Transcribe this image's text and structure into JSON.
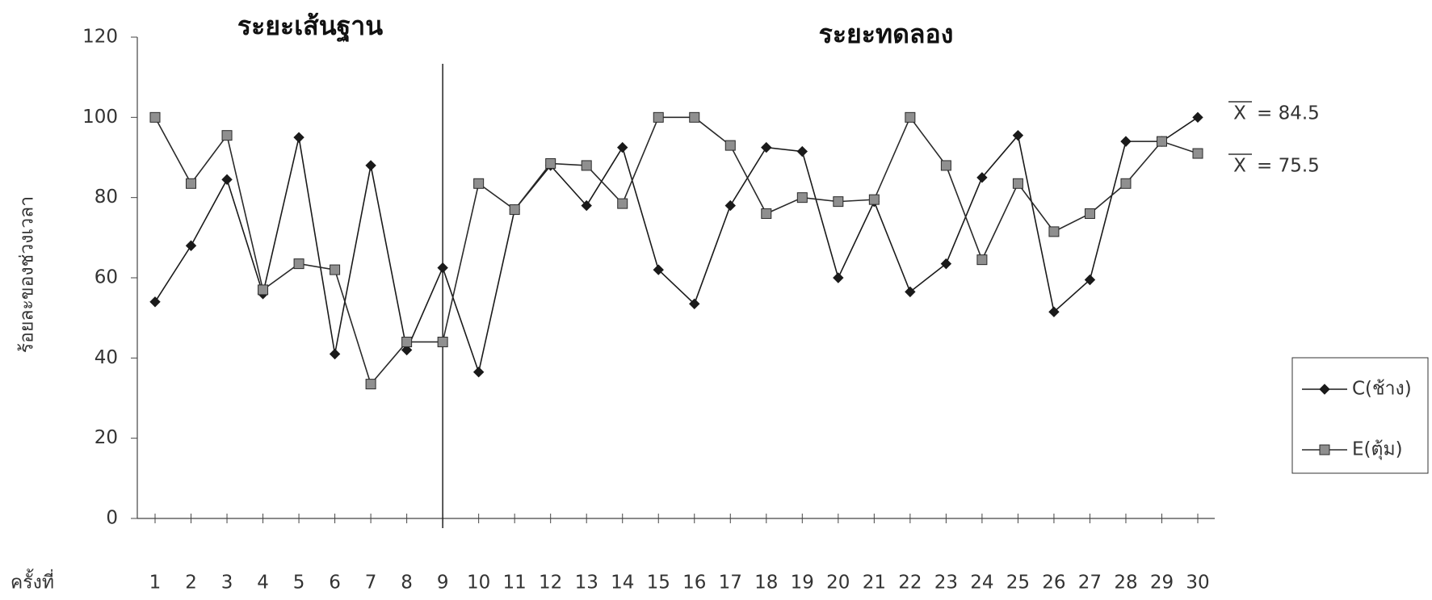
{
  "chart_data": {
    "type": "line",
    "phase_labels": [
      "ระยะเส้นฐาน",
      "ระยะทดลอง"
    ],
    "phase_change_x": 9,
    "y_label": "ร้อยละของช่วงเวลา",
    "x_label": "ครั้งที่",
    "categories": [
      "1",
      "2",
      "3",
      "4",
      "5",
      "6",
      "7",
      "8",
      "9",
      "10",
      "11",
      "12",
      "13",
      "14",
      "15",
      "16",
      "17",
      "18",
      "19",
      "20",
      "21",
      "22",
      "23",
      "24",
      "25",
      "26",
      "27",
      "28",
      "29",
      "30"
    ],
    "ylim": [
      0,
      120
    ],
    "yticks": [
      0,
      20,
      40,
      60,
      80,
      100,
      120
    ],
    "series": [
      {
        "name": "C(ช้าง)",
        "color": "#1a1a1a",
        "marker": "diamond",
        "marker_fill": "#1a1a1a",
        "values": [
          54,
          68,
          84.5,
          56,
          95,
          41,
          88,
          42,
          62.5,
          36.5,
          77,
          88,
          78,
          92.5,
          62,
          53.5,
          78,
          92.5,
          91.5,
          60,
          79,
          56.5,
          63.5,
          85,
          95.5,
          51.5,
          59.5,
          94,
          94,
          100
        ]
      },
      {
        "name": "E(ตุ้ม)",
        "color": "#2a2a2a",
        "marker": "square",
        "marker_fill": "#8f8f8f",
        "values": [
          100,
          83.5,
          95.5,
          57,
          63.5,
          62,
          33.5,
          44,
          44,
          83.5,
          77,
          88.5,
          88,
          78.5,
          100,
          100,
          93,
          76,
          80,
          79,
          79.5,
          100,
          88,
          64.5,
          83.5,
          71.5,
          76,
          83.5,
          94,
          91
        ]
      }
    ],
    "mean_annotations": [
      {
        "symbol": "X",
        "text": "= 84.5"
      },
      {
        "symbol": "X",
        "text": "= 75.5"
      }
    ]
  }
}
